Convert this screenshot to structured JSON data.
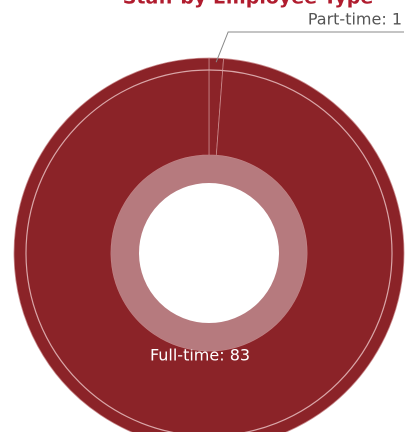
{
  "chart_data": {
    "type": "donut",
    "title": "Staff by Employee Type",
    "categories": [
      "Part-time",
      "Full-time"
    ],
    "values": [
      1,
      83
    ],
    "value_labels": [
      "Part-time: 1",
      "Full-time: 83"
    ],
    "color": "#8b2328"
  }
}
